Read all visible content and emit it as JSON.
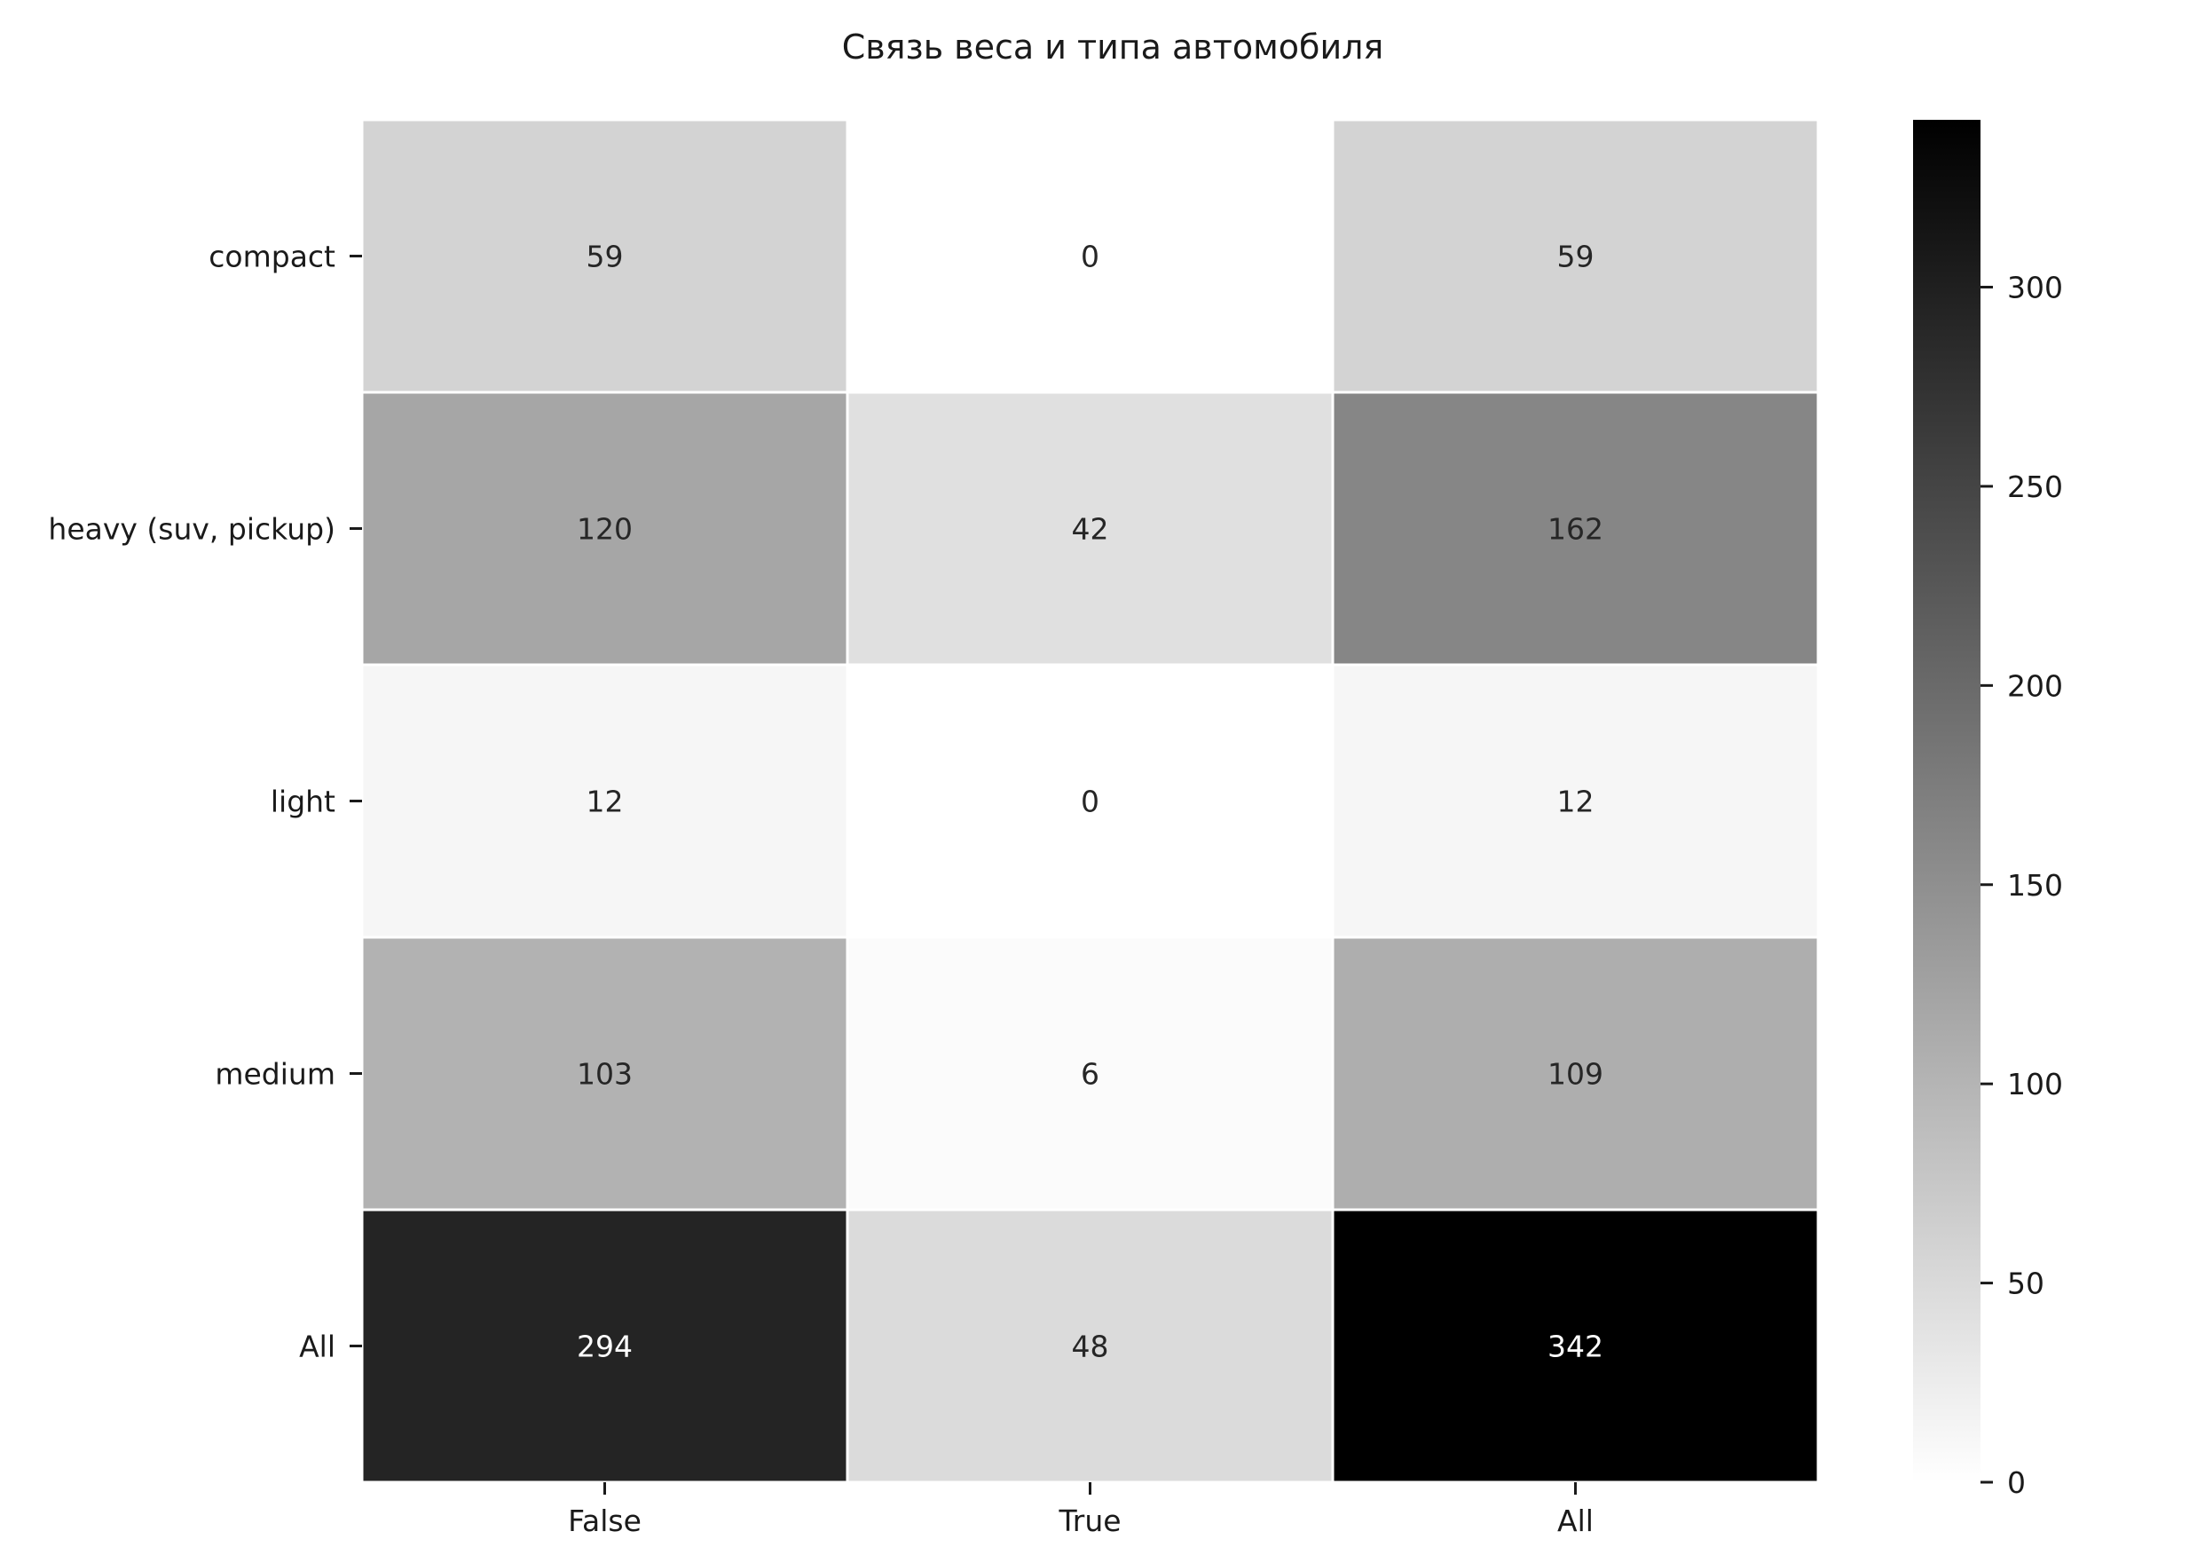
{
  "chart_data": {
    "type": "heatmap",
    "title": "Связь веса и типа автомобиля",
    "xlabel": "",
    "ylabel": "",
    "x_categories": [
      "False",
      "True",
      "All"
    ],
    "y_categories": [
      "compact",
      "heavy (suv, pickup)",
      "light",
      "medium",
      "All"
    ],
    "values": [
      [
        59,
        0,
        59
      ],
      [
        120,
        42,
        162
      ],
      [
        12,
        0,
        12
      ],
      [
        103,
        6,
        109
      ],
      [
        294,
        48,
        342
      ]
    ],
    "colormap": "Greys",
    "vmin": 0,
    "vmax": 342,
    "colorbar": {
      "position": "right",
      "ticks": [
        0,
        50,
        100,
        150,
        200,
        250,
        300
      ]
    },
    "grid": false
  }
}
